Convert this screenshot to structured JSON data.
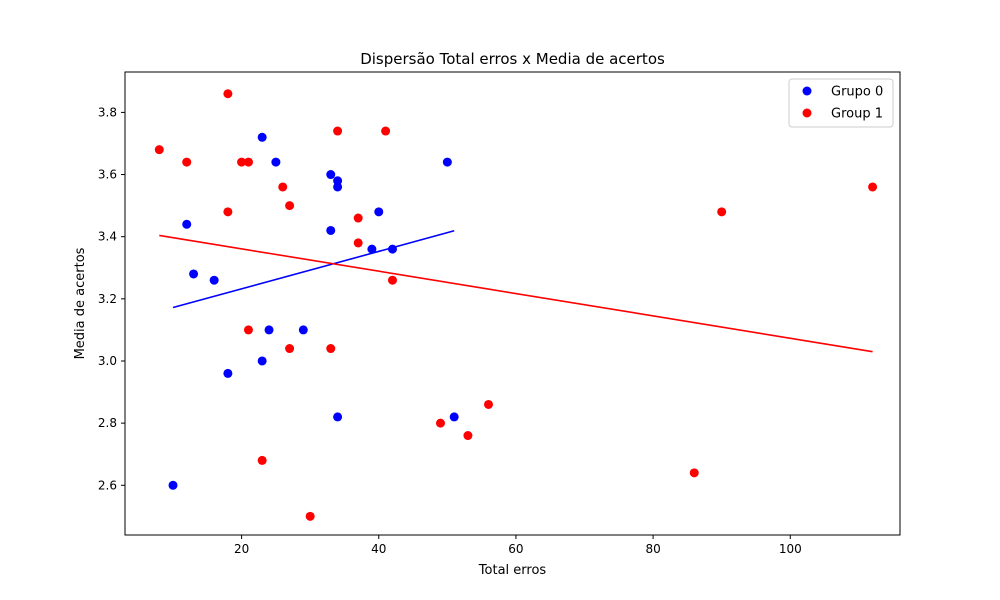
{
  "chart_data": {
    "type": "scatter",
    "title": "Dispersão Total erros x Media de acertos",
    "xlabel": "Total erros",
    "ylabel": "Media de acertos",
    "xlim": [
      3,
      116
    ],
    "ylim": [
      2.44,
      3.93
    ],
    "xticks": [
      20,
      40,
      60,
      80,
      100
    ],
    "yticks": [
      2.6,
      2.8,
      3.0,
      3.2,
      3.4,
      3.6,
      3.8
    ],
    "grid": false,
    "legend_position": "top-right",
    "series": [
      {
        "name": "Grupo 0",
        "color": "#0000ff",
        "points": [
          [
            10,
            2.6
          ],
          [
            12,
            3.44
          ],
          [
            13,
            3.28
          ],
          [
            16,
            3.26
          ],
          [
            18,
            2.96
          ],
          [
            23,
            3.72
          ],
          [
            23,
            3.0
          ],
          [
            24,
            3.1
          ],
          [
            25,
            3.64
          ],
          [
            29,
            3.1
          ],
          [
            33,
            3.6
          ],
          [
            33,
            3.42
          ],
          [
            34,
            3.58
          ],
          [
            34,
            3.56
          ],
          [
            34,
            2.82
          ],
          [
            39,
            3.36
          ],
          [
            40,
            3.48
          ],
          [
            42,
            3.36
          ],
          [
            50,
            3.64
          ],
          [
            51,
            2.82
          ]
        ],
        "trendline": [
          [
            10,
            3.172
          ],
          [
            51,
            3.419
          ]
        ]
      },
      {
        "name": "Group 1",
        "color": "#ff0000",
        "points": [
          [
            8,
            3.68
          ],
          [
            12,
            3.64
          ],
          [
            18,
            3.86
          ],
          [
            18,
            3.48
          ],
          [
            20,
            3.64
          ],
          [
            21,
            3.64
          ],
          [
            21,
            3.1
          ],
          [
            23,
            2.68
          ],
          [
            26,
            3.56
          ],
          [
            27,
            3.5
          ],
          [
            27,
            3.04
          ],
          [
            30,
            2.5
          ],
          [
            33,
            3.04
          ],
          [
            34,
            3.74
          ],
          [
            37,
            3.46
          ],
          [
            37,
            3.38
          ],
          [
            41,
            3.74
          ],
          [
            42,
            3.26
          ],
          [
            49,
            2.8
          ],
          [
            53,
            2.76
          ],
          [
            56,
            2.86
          ],
          [
            86,
            2.64
          ],
          [
            90,
            3.48
          ],
          [
            112,
            3.56
          ]
        ],
        "trendline": [
          [
            8,
            3.404
          ],
          [
            112,
            3.03
          ]
        ]
      }
    ]
  }
}
